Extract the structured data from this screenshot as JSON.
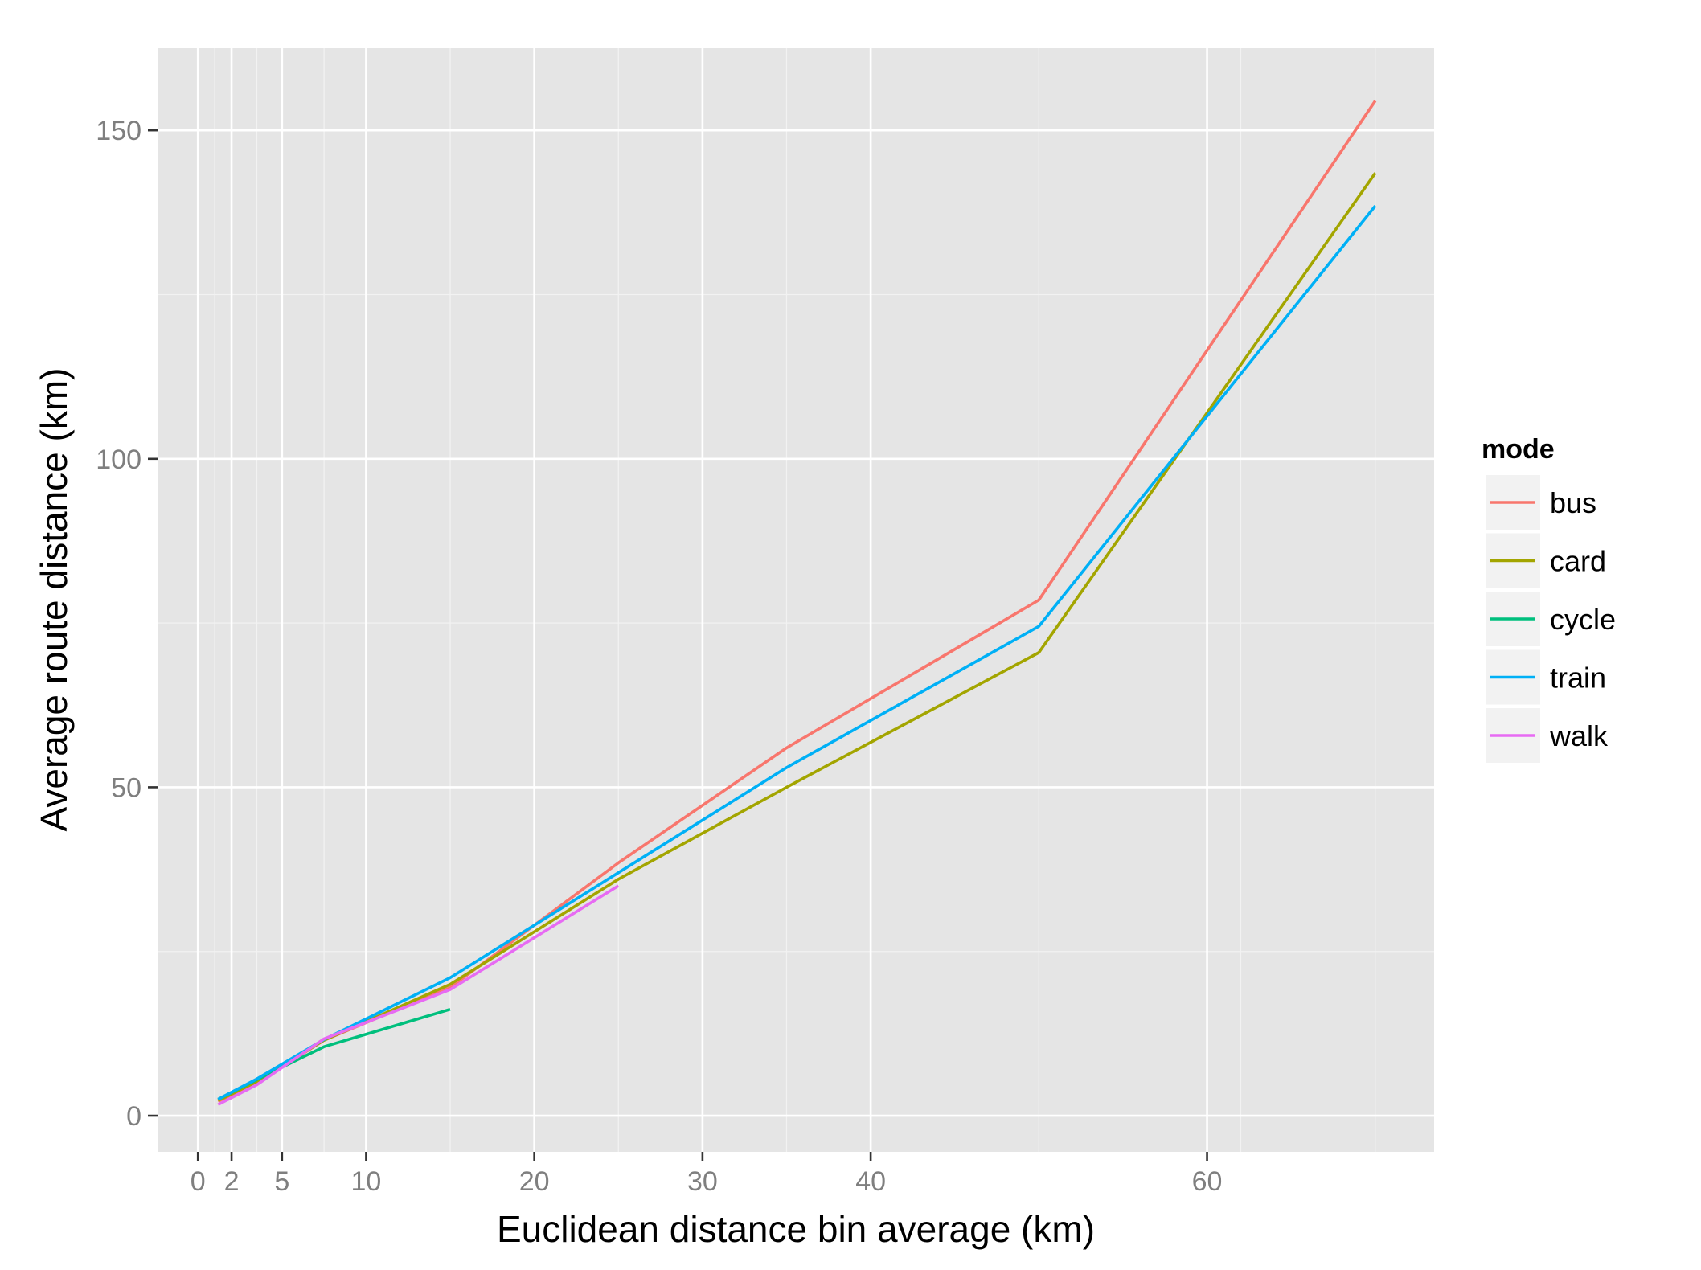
{
  "chart_data": {
    "type": "line",
    "xlabel": "Euclidean distance bin average (km)",
    "ylabel": "Average route distance (km)",
    "xlim": [
      -2.4,
      73.5
    ],
    "ylim": [
      -5.5,
      162.5
    ],
    "x_ticks": [
      0,
      2,
      5,
      10,
      20,
      30,
      40,
      60
    ],
    "y_ticks": [
      0,
      50,
      100,
      150
    ],
    "x_minor_gridlines": [
      1,
      3.5,
      7.5,
      15,
      25,
      35,
      50,
      62,
      70
    ],
    "y_minor_gridlines": [
      25,
      75,
      125
    ],
    "grid": true,
    "legend": {
      "title": "mode",
      "position": "right"
    },
    "series": [
      {
        "name": "bus",
        "color": "#F8766D",
        "points": [
          [
            1.2,
            2.2
          ],
          [
            3.5,
            5.0
          ],
          [
            7.5,
            11.5
          ],
          [
            15,
            19.5
          ],
          [
            25,
            38.5
          ],
          [
            35,
            56
          ],
          [
            50,
            78.5
          ],
          [
            70,
            154.5
          ]
        ]
      },
      {
        "name": "card",
        "color": "#A3A500",
        "points": [
          [
            1.2,
            2.3
          ],
          [
            3.5,
            5.2
          ],
          [
            7.5,
            11.5
          ],
          [
            15,
            20
          ],
          [
            25,
            36
          ],
          [
            35,
            50
          ],
          [
            50,
            70.5
          ],
          [
            70,
            143.5
          ]
        ]
      },
      {
        "name": "cycle",
        "color": "#00BF7D",
        "points": [
          [
            1.2,
            2.5
          ],
          [
            3.5,
            5.5
          ],
          [
            7.5,
            10.5
          ],
          [
            15,
            16.2
          ]
        ]
      },
      {
        "name": "train",
        "color": "#00B0F6",
        "points": [
          [
            1.2,
            2.5
          ],
          [
            3.5,
            5.6
          ],
          [
            7.5,
            11.6
          ],
          [
            15,
            21
          ],
          [
            25,
            37
          ],
          [
            35,
            53
          ],
          [
            50,
            74.5
          ],
          [
            70,
            138.5
          ]
        ]
      },
      {
        "name": "walk",
        "color": "#E76BF3",
        "points": [
          [
            1.2,
            1.7
          ],
          [
            3.5,
            4.7
          ],
          [
            7.5,
            11.7
          ],
          [
            15,
            19.2
          ],
          [
            25,
            35
          ]
        ]
      }
    ]
  }
}
